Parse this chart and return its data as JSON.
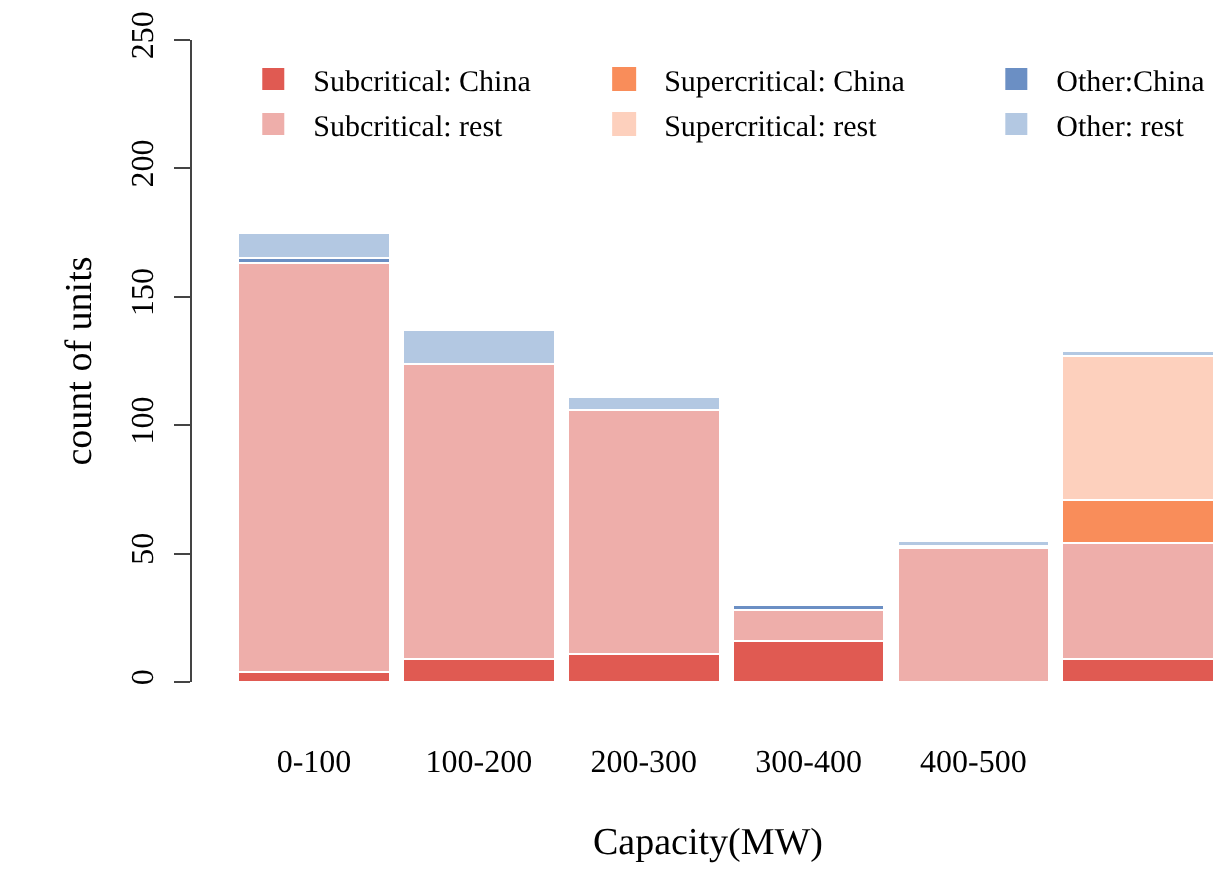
{
  "chart_data": {
    "type": "bar",
    "stacked": true,
    "xlabel": "Capacity(MW)",
    "ylabel": "count of units",
    "categories": [
      "0-100",
      "100-200",
      "200-300",
      "300-400",
      "400-500",
      null
    ],
    "series": [
      {
        "name": "Subcritical: China",
        "color": "#e05a52",
        "values": [
          4,
          9,
          11,
          16,
          0,
          9
        ]
      },
      {
        "name": "Subcritical: rest",
        "color": "#eeaeaa",
        "values": [
          159,
          115,
          95,
          12,
          52,
          45
        ]
      },
      {
        "name": "Supercritical: China",
        "color": "#f98d5a",
        "values": [
          0,
          0,
          0,
          0,
          0,
          17
        ]
      },
      {
        "name": "Supercritical: rest",
        "color": "#fdd0bd",
        "values": [
          0,
          0,
          0,
          0,
          0,
          56
        ]
      },
      {
        "name": "Other:China",
        "color": "#6b8fc4",
        "values": [
          2,
          0,
          0,
          2,
          1,
          0
        ]
      },
      {
        "name": "Other: rest",
        "color": "#b3c8e2",
        "values": [
          10,
          13,
          5,
          0,
          2,
          2
        ]
      }
    ],
    "ylim": [
      0,
      250
    ],
    "yticks": [
      0,
      50,
      100,
      150,
      200,
      250
    ],
    "legend": "top"
  }
}
